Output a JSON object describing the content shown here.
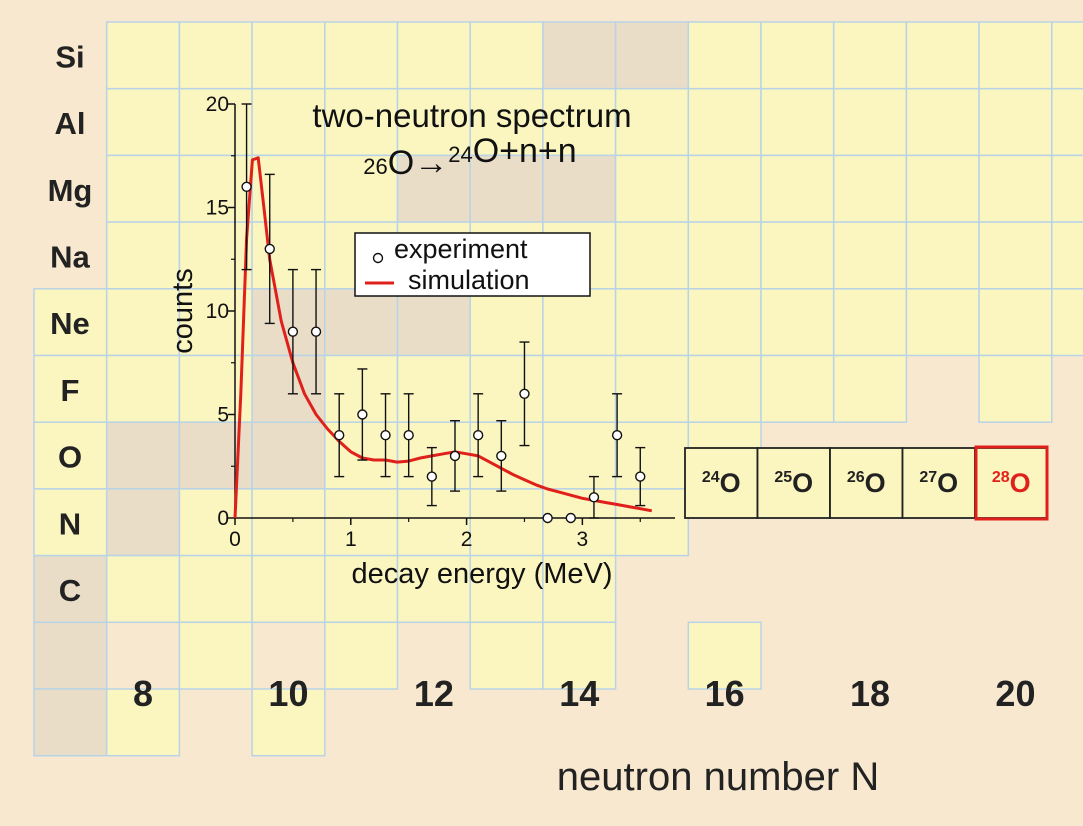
{
  "chart_data": {
    "type": "scatter",
    "title": "two-neutron spectrum",
    "subtitle": "26O→24O+n+n",
    "xlabel": "decay energy (MeV)",
    "ylabel": "counts",
    "xlim": [
      0,
      3.8
    ],
    "ylim": [
      0,
      20
    ],
    "x_ticks": [
      "0",
      "1",
      "2",
      "3"
    ],
    "y_ticks": [
      "0",
      "5",
      "10",
      "15",
      "20"
    ],
    "legend_position": "top-right",
    "series": [
      {
        "name": "experiment",
        "style": "open-circle-with-error-bars",
        "x": [
          0.1,
          0.3,
          0.5,
          0.7,
          0.9,
          1.1,
          1.3,
          1.5,
          1.7,
          1.9,
          2.1,
          2.3,
          2.5,
          2.7,
          2.9,
          3.1,
          3.3,
          3.5
        ],
        "y": [
          16,
          13,
          9,
          9,
          4,
          5,
          4,
          4,
          2,
          3,
          4,
          3,
          6,
          0,
          0,
          1,
          4,
          2
        ],
        "error_low": [
          4,
          3.6,
          3,
          3,
          2,
          2.2,
          2,
          2,
          1.4,
          1.7,
          2,
          1.7,
          2.5,
          0,
          0,
          1,
          2,
          1.4
        ],
        "error_high": [
          4,
          3.6,
          3,
          3,
          2,
          2.2,
          2,
          2,
          1.4,
          1.7,
          2,
          1.7,
          2.5,
          0,
          0,
          1,
          2,
          1.4
        ]
      },
      {
        "name": "simulation",
        "style": "line",
        "color": "#e0201b",
        "x": [
          0.0,
          0.05,
          0.1,
          0.15,
          0.2,
          0.25,
          0.3,
          0.4,
          0.5,
          0.6,
          0.7,
          0.8,
          0.9,
          1.0,
          1.1,
          1.2,
          1.3,
          1.4,
          1.5,
          1.6,
          1.7,
          1.8,
          1.9,
          2.0,
          2.1,
          2.2,
          2.3,
          2.4,
          2.5,
          2.6,
          2.7,
          2.8,
          2.9,
          3.0,
          3.1,
          3.2,
          3.3,
          3.4,
          3.5,
          3.6
        ],
        "y": [
          0.0,
          6.0,
          13.5,
          17.3,
          17.4,
          15.0,
          12.5,
          9.5,
          7.5,
          6.0,
          5.0,
          4.3,
          3.7,
          3.2,
          2.9,
          2.8,
          2.8,
          2.7,
          2.75,
          2.9,
          3.0,
          3.1,
          3.2,
          3.1,
          3.0,
          2.7,
          2.4,
          2.1,
          1.85,
          1.6,
          1.4,
          1.25,
          1.1,
          0.95,
          0.85,
          0.75,
          0.65,
          0.55,
          0.45,
          0.35
        ]
      }
    ]
  },
  "chart": {
    "element_labels": [
      "Si",
      "Al",
      "Mg",
      "Na",
      "Ne",
      "F",
      "O",
      "N",
      "C"
    ],
    "neutron_ticks": [
      "8",
      "10",
      "12",
      "14",
      "16",
      "18",
      "20"
    ],
    "neutron_axis_label": "neutron number N",
    "isotope_boxes": [
      {
        "mass": "24",
        "symbol": "O",
        "highlight": false
      },
      {
        "mass": "25",
        "symbol": "O",
        "highlight": false
      },
      {
        "mass": "26",
        "symbol": "O",
        "highlight": false
      },
      {
        "mass": "27",
        "symbol": "O",
        "highlight": false
      },
      {
        "mass": "28",
        "symbol": "O",
        "highlight": true
      }
    ],
    "colors": {
      "background": "#f7e8cf",
      "cell_fill": "#fbf6bf",
      "cell_shaded": "#e9ddc8",
      "grid_line": "#b9d3e6",
      "highlight": "#e0201b",
      "text": "#222222"
    }
  }
}
